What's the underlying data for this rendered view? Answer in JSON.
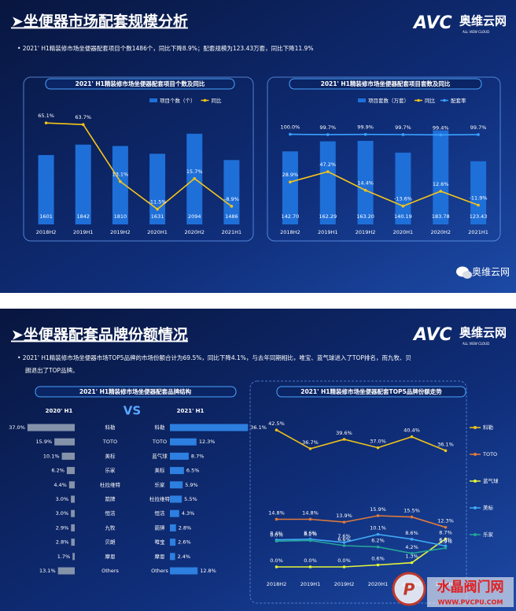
{
  "logo": {
    "mark": "AVC",
    "name": "奥维云网",
    "sub": "ALL VIEW CLOUD"
  },
  "slides": [
    {
      "title": "➤坐便器市场配套规模分析",
      "note": [
        "•  2021' H1精装修市场坐便器配套项目个数1486个，同比下降8.9%；配套规模为123.43万套，同比下降11.9%"
      ],
      "watermark": "奥维云网"
    },
    {
      "title": "➤坐便器配套品牌份额情况",
      "note": [
        "•  2021' H1精装修市场坐便器市场TOP5品牌的市场份额合计为69.5%，同比下降4.1%，与去年同期相比，唯宝、蓝气球进入了TOP排名，而九牧、贝",
        "朗退出了TOP品牌。"
      ],
      "watermark": "水晶阀门网",
      "watermark_url": "WWW.PVCPU.COM"
    }
  ],
  "chart_data": [
    {
      "type": "bar",
      "title": "2021' H1精装修市场坐便器配套项目个数及同比",
      "categories": [
        "2018H2",
        "2019H1",
        "2019H2",
        "2020H1",
        "2020H2",
        "2021H1"
      ],
      "ylim": [
        0,
        2600
      ],
      "y2lim": [
        -25,
        75
      ],
      "series": [
        {
          "name": "项目个数（个）",
          "color": "#1f6fd8",
          "values": [
            1601,
            1842,
            1810,
            1631,
            2094,
            1486
          ]
        },
        {
          "name": "同比",
          "color": "#f5c518",
          "axis": "y2",
          "values": [
            65.1,
            63.7,
            13.1,
            -11.5,
            15.7,
            -8.9
          ],
          "value_labels": [
            "65.1%",
            "63.7%",
            "13.1%",
            "-11.5%",
            "15.7%",
            "-8.9%"
          ]
        }
      ]
    },
    {
      "type": "bar",
      "title": "2021' H1精装修市场坐便器配套项目套数及同比",
      "categories": [
        "2018H2",
        "2019H1",
        "2019H2",
        "2020H1",
        "2020H2",
        "2021H1"
      ],
      "ylim": [
        0,
        220
      ],
      "y2lim": [
        -46,
        153
      ],
      "y3lim": [
        0,
        125
      ],
      "series": [
        {
          "name": "项目套数（万套）",
          "color": "#1f6fd8",
          "values": [
            142.7,
            162.29,
            163.2,
            140.19,
            183.78,
            123.43
          ],
          "value_labels": [
            "142.70",
            "162.29",
            "163.20",
            "140.19",
            "183.78",
            "123.43"
          ]
        },
        {
          "name": "同比",
          "color": "#f5c518",
          "axis": "y2",
          "values": [
            28.9,
            47.2,
            14.4,
            -13.6,
            12.6,
            -11.9
          ],
          "value_labels": [
            "28.9%",
            "47.2%",
            "14.4%",
            "-13.6%",
            "12.6%",
            "-11.9%"
          ]
        },
        {
          "name": "配套率",
          "color": "#3aa0ff",
          "axis": "y3",
          "values": [
            100.0,
            99.7,
            99.9,
            99.7,
            99.4,
            99.7
          ],
          "value_labels": [
            "100.0%",
            "99.7%",
            "99.9%",
            "99.7%",
            "99.4%",
            "99.7%"
          ]
        }
      ]
    },
    {
      "type": "butterfly",
      "title": "2021' H1精装修市场坐便器配套品牌结构",
      "vs_label": "VS",
      "xlim": [
        0,
        40
      ],
      "series": [
        {
          "name": "2020' H1",
          "color": "#8593aa",
          "categories": [
            "科勒",
            "TOTO",
            "美标",
            "乐家",
            "杜拉维特",
            "箭牌",
            "恒洁",
            "九牧",
            "贝朗",
            "摩恩",
            "Others"
          ],
          "values": [
            37.0,
            15.9,
            10.1,
            6.2,
            4.4,
            3.0,
            3.0,
            2.9,
            2.8,
            1.7,
            13.1
          ],
          "value_labels": [
            "37.0%",
            "15.9%",
            "10.1%",
            "6.2%",
            "4.4%",
            "3.0%",
            "3.0%",
            "2.9%",
            "2.8%",
            "1.7%",
            "13.1%"
          ]
        },
        {
          "name": "2021' H1",
          "color": "#2d7fe0",
          "categories": [
            "科勒",
            "TOTO",
            "蓝气球",
            "美标",
            "乐家",
            "杜拉维特",
            "恒洁",
            "箭牌",
            "唯宝",
            "摩恩",
            "Others"
          ],
          "values": [
            36.1,
            12.3,
            8.7,
            6.5,
            5.9,
            5.5,
            4.3,
            2.8,
            2.6,
            2.4,
            12.8
          ],
          "value_labels": [
            "36.1%",
            "12.3%",
            "8.7%",
            "6.5%",
            "5.9%",
            "5.5%",
            "4.3%",
            "2.8%",
            "2.6%",
            "2.4%",
            "12.8%"
          ]
        }
      ]
    },
    {
      "type": "line",
      "title": "2021' H1精装修市场坐便器配套TOP5品牌份额走势",
      "categories": [
        "2018H2",
        "2019H1",
        "2019H2",
        "2020H1",
        "2020H2",
        "2021H1"
      ],
      "ylim": [
        0,
        44
      ],
      "legend": "right",
      "series": [
        {
          "name": "科勒",
          "color": "#f0c419",
          "values": [
            42.5,
            36.7,
            39.6,
            37.0,
            40.4,
            36.1
          ],
          "value_labels": [
            "42.5%",
            "36.7%",
            "39.6%",
            "37.0%",
            "40.4%",
            "36.1%"
          ]
        },
        {
          "name": "TOTO",
          "color": "#e07a3c",
          "values": [
            14.8,
            14.8,
            13.9,
            15.9,
            15.5,
            12.3
          ],
          "value_labels": [
            "14.8%",
            "14.8%",
            "13.9%",
            "15.9%",
            "15.5%",
            "12.3%"
          ]
        },
        {
          "name": "蓝气球",
          "color": "#e4f53a",
          "values": [
            0.0,
            0.0,
            0.0,
            0.6,
            1.3,
            8.7
          ],
          "value_labels": [
            "0.0%",
            "0.0%",
            "0.0%",
            "0.6%",
            "1.3%",
            "8.7%"
          ]
        },
        {
          "name": "美标",
          "color": "#3fa9f5",
          "values": [
            8.4,
            8.6,
            7.6,
            10.1,
            8.6,
            6.5
          ],
          "value_labels": [
            "8.4%",
            "8.6%",
            "7.6%",
            "10.1%",
            "8.6%",
            "6.5%"
          ]
        },
        {
          "name": "乐家",
          "color": "#25a59a",
          "values": [
            8.0,
            8.2,
            6.6,
            6.2,
            4.2,
            5.9
          ],
          "value_labels": [
            "8.0%",
            "8.2%",
            "6.6%",
            "6.2%",
            "4.2%",
            "5.9%"
          ]
        }
      ]
    }
  ]
}
